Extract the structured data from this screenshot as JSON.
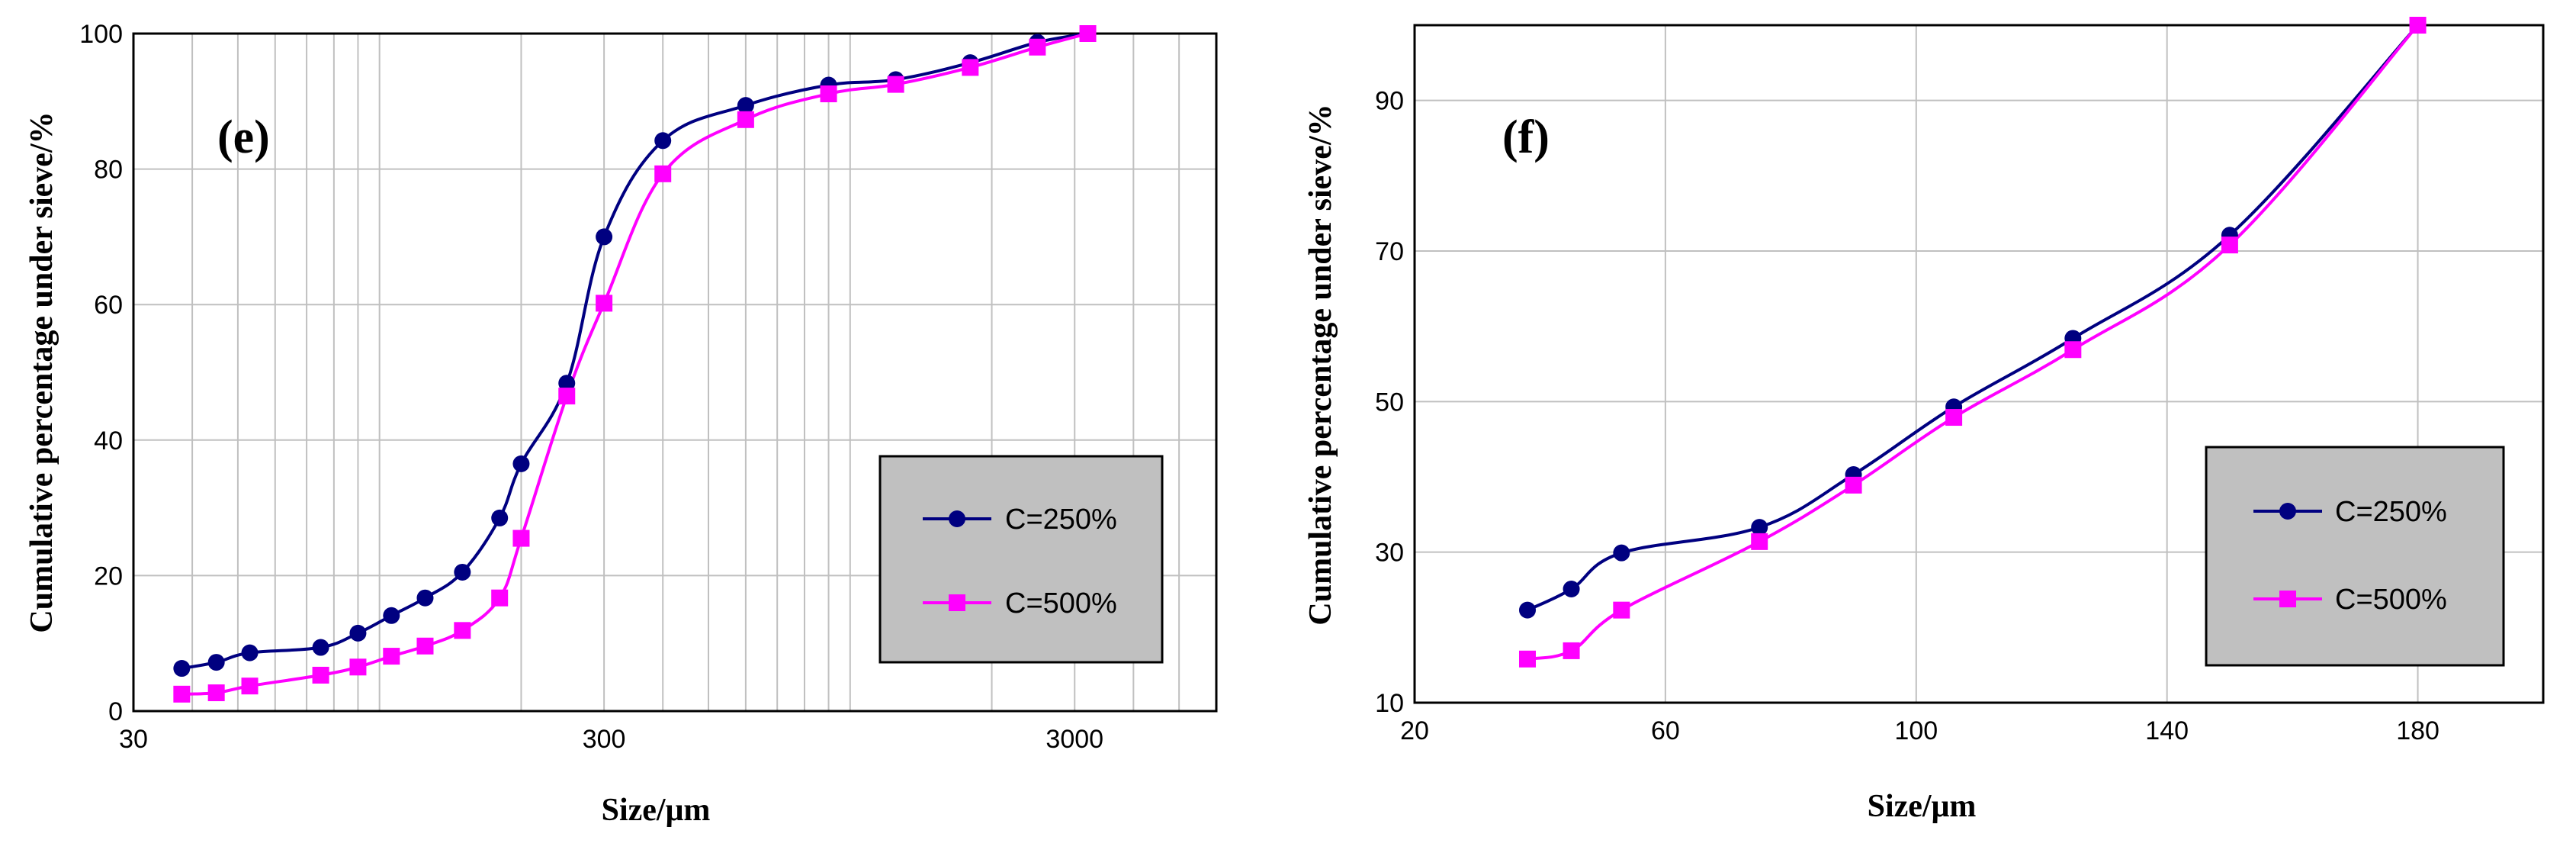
{
  "colors": {
    "series1": "#000080",
    "series2": "#ff00ff",
    "legend_bg": "#c0c0c0"
  },
  "chart_data": [
    {
      "panel": "(e)",
      "type": "line",
      "xscale": "log",
      "xlabel": "Size/μm",
      "ylabel": "Cumulative percentage under sieve/%",
      "xlim": [
        30,
        6000
      ],
      "ylim": [
        0,
        100
      ],
      "xticks": [
        30,
        300,
        3000
      ],
      "xtick_labels": [
        "30",
        "300",
        "3000"
      ],
      "yticks": [
        0,
        20,
        40,
        60,
        80,
        100
      ],
      "ytick_labels": [
        "0",
        "20",
        "40",
        "60",
        "80",
        "100"
      ],
      "legend_position": "bottom-right",
      "series": [
        {
          "name": "C=250%",
          "marker": "circle",
          "x": [
            38,
            45,
            53,
            75,
            90,
            106,
            125,
            150,
            180,
            200,
            250,
            300,
            400,
            600,
            900,
            1250,
            1800,
            2500,
            3200
          ],
          "y": [
            6.3,
            7.2,
            8.6,
            9.4,
            11.5,
            14.1,
            16.7,
            20.5,
            28.5,
            36.5,
            48.4,
            70,
            84.2,
            89.4,
            92.4,
            93.2,
            95.7,
            98.7,
            100
          ]
        },
        {
          "name": "C=500%",
          "marker": "square",
          "x": [
            38,
            45,
            53,
            75,
            90,
            106,
            125,
            150,
            180,
            200,
            250,
            300,
            400,
            600,
            900,
            1250,
            1800,
            2500,
            3200
          ],
          "y": [
            2.5,
            2.7,
            3.7,
            5.3,
            6.5,
            8.1,
            9.6,
            11.9,
            16.7,
            25.5,
            46.5,
            60.2,
            79.3,
            87.3,
            91.1,
            92.5,
            95,
            98,
            100
          ]
        }
      ]
    },
    {
      "panel": "(f)",
      "type": "line",
      "xscale": "linear",
      "xlabel": "Size/μm",
      "ylabel": "Cumulative percentage under sieve/%",
      "xlim": [
        20,
        200
      ],
      "ylim": [
        10,
        100
      ],
      "xticks": [
        20,
        60,
        100,
        140,
        180
      ],
      "xtick_labels": [
        "20",
        "60",
        "100",
        "140",
        "180"
      ],
      "yticks": [
        10,
        30,
        50,
        70,
        90
      ],
      "ytick_labels": [
        "10",
        "30",
        "50",
        "70",
        "90"
      ],
      "legend_position": "bottom-right",
      "series": [
        {
          "name": "C=250%",
          "marker": "circle",
          "x": [
            38,
            45,
            53,
            75,
            90,
            106,
            125,
            150,
            180
          ],
          "y": [
            22.3,
            25.1,
            29.9,
            33.3,
            40.3,
            49.3,
            58.4,
            72.1,
            100
          ]
        },
        {
          "name": "C=500%",
          "marker": "square",
          "x": [
            38,
            45,
            53,
            75,
            90,
            106,
            125,
            150,
            180
          ],
          "y": [
            15.8,
            16.9,
            22.3,
            31.4,
            38.9,
            47.9,
            56.9,
            70.8,
            100
          ]
        }
      ]
    }
  ]
}
